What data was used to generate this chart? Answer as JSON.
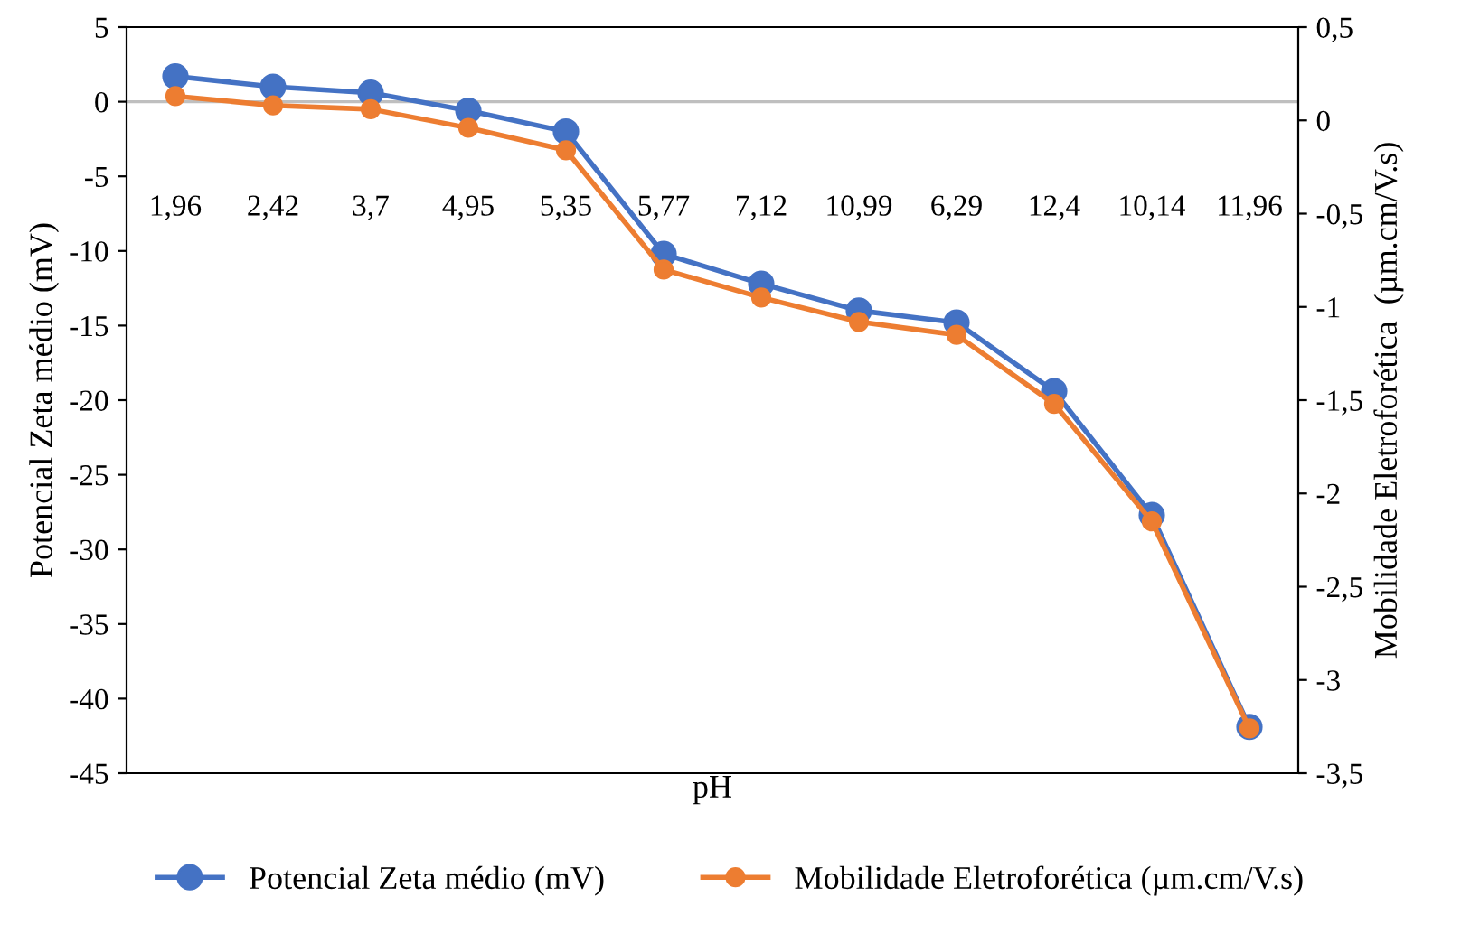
{
  "chart_data": {
    "type": "line",
    "xlabel": "pH",
    "ylabel": "Potencial Zeta médio (mV)",
    "y2label": "Mobilidade Eletroforética  (µm.cm/V.s)",
    "categories": [
      "1,96",
      "2,42",
      "3,7",
      "4,95",
      "5,35",
      "5,77",
      "7,12",
      "10,99",
      "6,29",
      "12,4",
      "10,14",
      "11,96"
    ],
    "series": [
      {
        "name": "Potencial Zeta médio (mV)",
        "color": "#4472c4",
        "values": [
          1.7,
          1.0,
          0.6,
          -0.6,
          -2.0,
          -10.2,
          -12.2,
          -14.0,
          -14.8,
          -19.4,
          -27.7,
          -41.9
        ]
      },
      {
        "name": "Mobilidade Eletroforética (µm.cm/V.s)",
        "color": "#ed7d31",
        "axis": "y2",
        "values": [
          0.13,
          0.08,
          0.06,
          -0.04,
          -0.16,
          -0.8,
          -0.95,
          -1.08,
          -1.15,
          -1.52,
          -2.15,
          -3.26
        ]
      }
    ],
    "ylim": [
      -45,
      5
    ],
    "yticks": [
      -45,
      -40,
      -35,
      -30,
      -25,
      -20,
      -15,
      -10,
      -5,
      0,
      5
    ],
    "y2lim": [
      -3.5,
      0.5
    ],
    "y2ticks": [
      {
        "value": -3.5,
        "label": "-3,5"
      },
      -3,
      {
        "value": -2.5,
        "label": "-2,5"
      },
      -2,
      {
        "value": -1.5,
        "label": "-1,5"
      },
      -1,
      {
        "value": -0.5,
        "label": "-0,5"
      },
      0,
      {
        "value": 0.5,
        "label": "0,5"
      }
    ],
    "ref_lines": [
      {
        "axis": "y",
        "value": 0,
        "color": "#bfbfbf"
      }
    ],
    "marker": "circle",
    "line_style": "solid",
    "grid": false,
    "legend": "bottom"
  }
}
